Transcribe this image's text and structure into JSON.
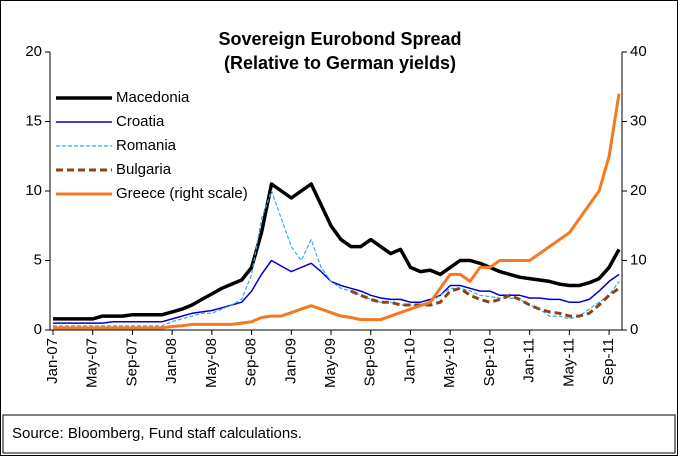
{
  "chart_data": {
    "type": "line",
    "title": "Sovereign Eurobond Spread",
    "subtitle": "(Relative to German yields)",
    "source": "Source: Bloomberg, Fund staff calculations.",
    "categories": [
      "Jan-07",
      null,
      null,
      null,
      "May-07",
      null,
      null,
      null,
      "Sep-07",
      null,
      null,
      null,
      "Jan-08",
      null,
      null,
      null,
      "May-08",
      null,
      null,
      null,
      "Sep-08",
      null,
      null,
      null,
      "Jan-09",
      null,
      null,
      null,
      "May-09",
      null,
      null,
      null,
      "Sep-09",
      null,
      null,
      null,
      "Jan-10",
      null,
      null,
      null,
      "May-10",
      null,
      null,
      null,
      "Sep-10",
      null,
      null,
      null,
      "Jan-11",
      null,
      null,
      null,
      "May-11",
      null,
      null,
      null,
      "Sep-11",
      null
    ],
    "ylim": [
      0,
      20
    ],
    "yticks": [
      0,
      5,
      10,
      15,
      20
    ],
    "y2lim": [
      0,
      40
    ],
    "y2ticks": [
      0,
      10,
      20,
      30,
      40
    ],
    "legend": "upper-left",
    "series": [
      {
        "name": "Macedonia",
        "color": "#000000",
        "values": [
          0.8,
          0.8,
          0.8,
          0.8,
          0.8,
          1.0,
          1.0,
          1.0,
          1.1,
          1.1,
          1.1,
          1.1,
          1.3,
          1.5,
          1.8,
          2.2,
          2.6,
          3.0,
          3.3,
          3.6,
          4.5,
          7,
          10.5,
          10,
          9.5,
          10,
          10.5,
          9,
          7.5,
          6.5,
          6,
          6,
          6.5,
          6,
          5.5,
          5.8,
          4.5,
          4.2,
          4.3,
          4.0,
          4.5,
          5.0,
          5.0,
          4.8,
          4.5,
          4.2,
          4.0,
          3.8,
          3.7,
          3.6,
          3.5,
          3.3,
          3.2,
          3.2,
          3.4,
          3.7,
          4.5,
          5.8
        ]
      },
      {
        "name": "Croatia",
        "color": "#0000cc",
        "values": [
          0.5,
          0.5,
          0.5,
          0.5,
          0.5,
          0.5,
          0.6,
          0.6,
          0.6,
          0.6,
          0.6,
          0.6,
          0.8,
          1,
          1.2,
          1.3,
          1.4,
          1.6,
          1.8,
          2.0,
          2.8,
          4,
          5,
          4.6,
          4.2,
          4.5,
          4.8,
          4.2,
          3.5,
          3.2,
          3.0,
          2.8,
          2.5,
          2.3,
          2.2,
          2.2,
          2.0,
          2.0,
          2.2,
          2.5,
          3.2,
          3.2,
          3.0,
          2.8,
          2.8,
          2.5,
          2.5,
          2.5,
          2.3,
          2.3,
          2.2,
          2.2,
          2.0,
          2.0,
          2.2,
          2.8,
          3.5,
          4.0
        ]
      },
      {
        "name": "Romania",
        "color": "#33aaee",
        "values": [
          0.3,
          0.3,
          0.3,
          0.3,
          0.3,
          0.3,
          0.3,
          0.3,
          0.3,
          0.3,
          0.3,
          0.3,
          0.6,
          0.8,
          1.0,
          1.2,
          1.2,
          1.5,
          1.8,
          2.2,
          4,
          8,
          10,
          8,
          6,
          5,
          6.5,
          4.5,
          3.5,
          3,
          2.8,
          2.5,
          2.2,
          2.0,
          2.0,
          1.8,
          1.8,
          1.8,
          2.0,
          2.5,
          3.0,
          3.0,
          2.8,
          2.5,
          2.4,
          2.3,
          2.3,
          2.2,
          1.8,
          1.5,
          1.0,
          1.0,
          0.8,
          1.0,
          1.5,
          2.0,
          2.5,
          3.5
        ]
      },
      {
        "name": "Bulgaria",
        "color": "#8b4513",
        "values": [
          null,
          null,
          null,
          null,
          null,
          null,
          null,
          null,
          null,
          null,
          null,
          null,
          null,
          null,
          null,
          null,
          null,
          null,
          null,
          null,
          null,
          null,
          null,
          null,
          null,
          null,
          null,
          null,
          null,
          null,
          2.8,
          2.5,
          2.2,
          2.0,
          2.0,
          1.8,
          1.8,
          1.8,
          1.8,
          2.0,
          2.8,
          3.0,
          2.5,
          2.2,
          2.0,
          2.2,
          2.5,
          2.2,
          1.8,
          1.5,
          1.3,
          1.2,
          1.0,
          1.0,
          1.2,
          1.8,
          2.5,
          3.0
        ]
      },
      {
        "name": "Greece (right scale)",
        "color": "#f47920",
        "axis": "y2",
        "values": [
          0.3,
          0.3,
          0.3,
          0.3,
          0.3,
          0.3,
          0.3,
          0.3,
          0.3,
          0.3,
          0.3,
          0.3,
          0.5,
          0.6,
          0.8,
          0.8,
          0.8,
          0.8,
          0.8,
          1,
          1.2,
          1.8,
          2,
          2,
          2.5,
          3,
          3.5,
          3,
          2.5,
          2,
          1.8,
          1.5,
          1.5,
          1.5,
          2,
          2.5,
          3,
          3.5,
          4,
          6,
          8,
          8,
          7,
          9,
          9,
          10,
          10,
          10,
          10,
          11,
          12,
          13,
          14,
          16,
          18,
          20,
          25,
          34
        ]
      }
    ]
  }
}
